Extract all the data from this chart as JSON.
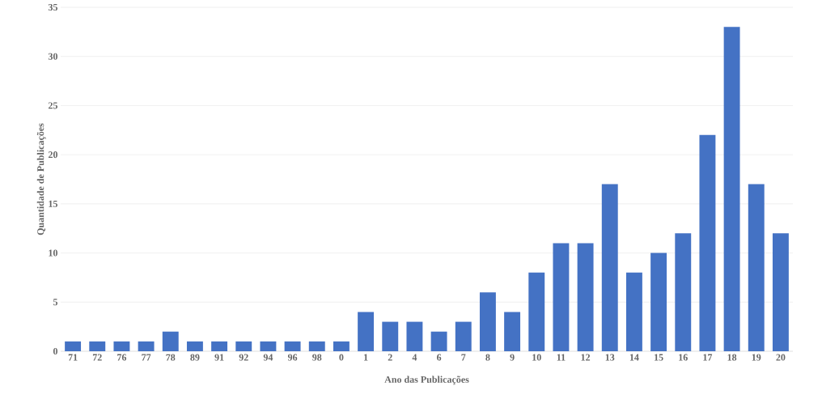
{
  "chart_data": {
    "type": "bar",
    "xlabel": "Ano das Publicações",
    "ylabel": "Quantidade de Publicações",
    "categories": [
      "71",
      "72",
      "76",
      "77",
      "78",
      "89",
      "91",
      "92",
      "94",
      "96",
      "98",
      "0",
      "1",
      "2",
      "4",
      "6",
      "7",
      "8",
      "9",
      "10",
      "11",
      "12",
      "13",
      "14",
      "15",
      "16",
      "17",
      "18",
      "19",
      "20"
    ],
    "values": [
      1,
      1,
      1,
      1,
      2,
      1,
      1,
      1,
      1,
      1,
      1,
      1,
      4,
      3,
      3,
      2,
      3,
      6,
      4,
      8,
      11,
      11,
      17,
      8,
      10,
      12,
      22,
      33,
      17,
      12
    ],
    "color": "#4472c4",
    "ylim": [
      0,
      35
    ],
    "yticks": [
      0,
      5,
      10,
      15,
      20,
      25,
      30,
      35
    ],
    "grid": "y"
  }
}
